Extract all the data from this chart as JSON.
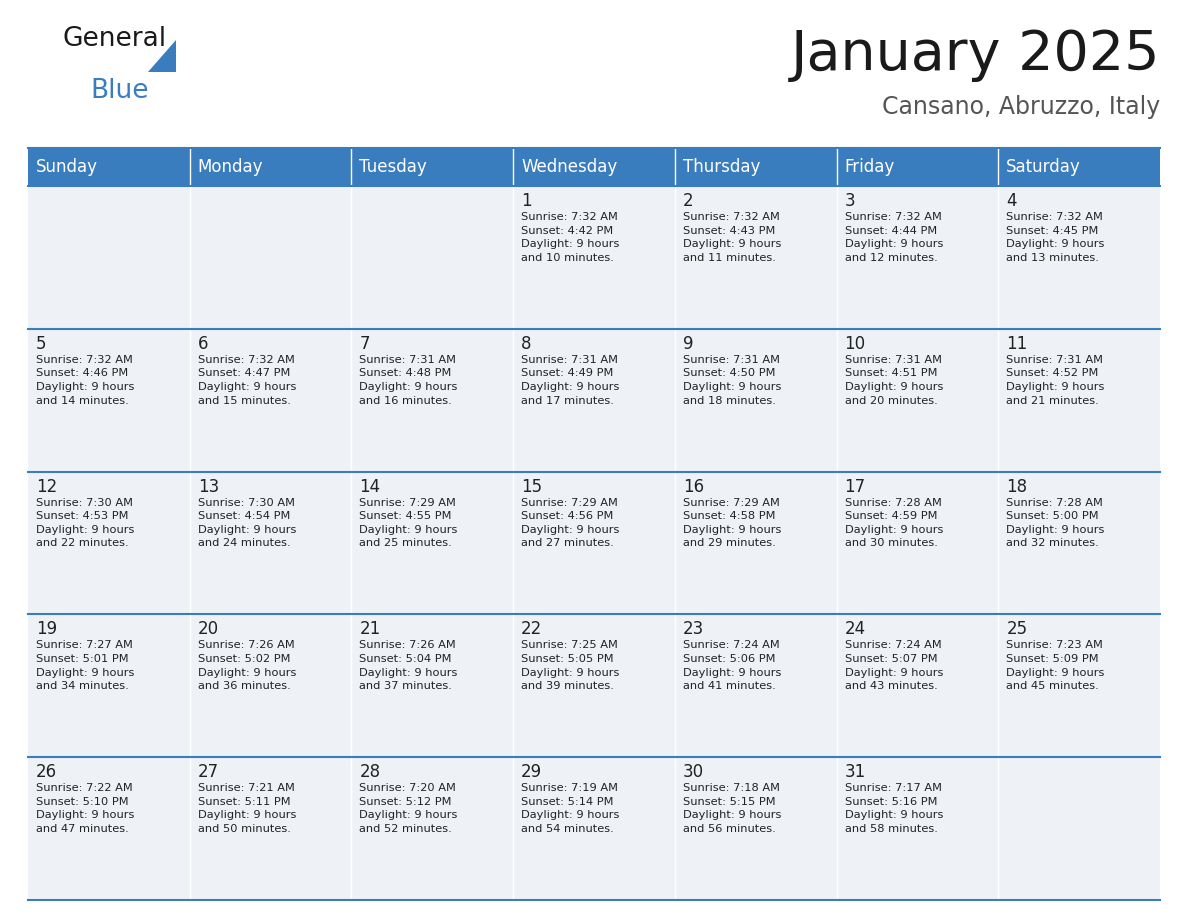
{
  "title": "January 2025",
  "subtitle": "Cansano, Abruzzo, Italy",
  "header_bg": "#3a7dbf",
  "header_text_color": "#ffffff",
  "cell_bg_odd": "#eef2f7",
  "cell_bg_even": "#eef2f7",
  "text_color": "#222222",
  "line_color": "#3a7dbf",
  "days_of_week": [
    "Sunday",
    "Monday",
    "Tuesday",
    "Wednesday",
    "Thursday",
    "Friday",
    "Saturday"
  ],
  "calendar": [
    [
      {
        "day": null,
        "info": null
      },
      {
        "day": null,
        "info": null
      },
      {
        "day": null,
        "info": null
      },
      {
        "day": 1,
        "info": "Sunrise: 7:32 AM\nSunset: 4:42 PM\nDaylight: 9 hours\nand 10 minutes."
      },
      {
        "day": 2,
        "info": "Sunrise: 7:32 AM\nSunset: 4:43 PM\nDaylight: 9 hours\nand 11 minutes."
      },
      {
        "day": 3,
        "info": "Sunrise: 7:32 AM\nSunset: 4:44 PM\nDaylight: 9 hours\nand 12 minutes."
      },
      {
        "day": 4,
        "info": "Sunrise: 7:32 AM\nSunset: 4:45 PM\nDaylight: 9 hours\nand 13 minutes."
      }
    ],
    [
      {
        "day": 5,
        "info": "Sunrise: 7:32 AM\nSunset: 4:46 PM\nDaylight: 9 hours\nand 14 minutes."
      },
      {
        "day": 6,
        "info": "Sunrise: 7:32 AM\nSunset: 4:47 PM\nDaylight: 9 hours\nand 15 minutes."
      },
      {
        "day": 7,
        "info": "Sunrise: 7:31 AM\nSunset: 4:48 PM\nDaylight: 9 hours\nand 16 minutes."
      },
      {
        "day": 8,
        "info": "Sunrise: 7:31 AM\nSunset: 4:49 PM\nDaylight: 9 hours\nand 17 minutes."
      },
      {
        "day": 9,
        "info": "Sunrise: 7:31 AM\nSunset: 4:50 PM\nDaylight: 9 hours\nand 18 minutes."
      },
      {
        "day": 10,
        "info": "Sunrise: 7:31 AM\nSunset: 4:51 PM\nDaylight: 9 hours\nand 20 minutes."
      },
      {
        "day": 11,
        "info": "Sunrise: 7:31 AM\nSunset: 4:52 PM\nDaylight: 9 hours\nand 21 minutes."
      }
    ],
    [
      {
        "day": 12,
        "info": "Sunrise: 7:30 AM\nSunset: 4:53 PM\nDaylight: 9 hours\nand 22 minutes."
      },
      {
        "day": 13,
        "info": "Sunrise: 7:30 AM\nSunset: 4:54 PM\nDaylight: 9 hours\nand 24 minutes."
      },
      {
        "day": 14,
        "info": "Sunrise: 7:29 AM\nSunset: 4:55 PM\nDaylight: 9 hours\nand 25 minutes."
      },
      {
        "day": 15,
        "info": "Sunrise: 7:29 AM\nSunset: 4:56 PM\nDaylight: 9 hours\nand 27 minutes."
      },
      {
        "day": 16,
        "info": "Sunrise: 7:29 AM\nSunset: 4:58 PM\nDaylight: 9 hours\nand 29 minutes."
      },
      {
        "day": 17,
        "info": "Sunrise: 7:28 AM\nSunset: 4:59 PM\nDaylight: 9 hours\nand 30 minutes."
      },
      {
        "day": 18,
        "info": "Sunrise: 7:28 AM\nSunset: 5:00 PM\nDaylight: 9 hours\nand 32 minutes."
      }
    ],
    [
      {
        "day": 19,
        "info": "Sunrise: 7:27 AM\nSunset: 5:01 PM\nDaylight: 9 hours\nand 34 minutes."
      },
      {
        "day": 20,
        "info": "Sunrise: 7:26 AM\nSunset: 5:02 PM\nDaylight: 9 hours\nand 36 minutes."
      },
      {
        "day": 21,
        "info": "Sunrise: 7:26 AM\nSunset: 5:04 PM\nDaylight: 9 hours\nand 37 minutes."
      },
      {
        "day": 22,
        "info": "Sunrise: 7:25 AM\nSunset: 5:05 PM\nDaylight: 9 hours\nand 39 minutes."
      },
      {
        "day": 23,
        "info": "Sunrise: 7:24 AM\nSunset: 5:06 PM\nDaylight: 9 hours\nand 41 minutes."
      },
      {
        "day": 24,
        "info": "Sunrise: 7:24 AM\nSunset: 5:07 PM\nDaylight: 9 hours\nand 43 minutes."
      },
      {
        "day": 25,
        "info": "Sunrise: 7:23 AM\nSunset: 5:09 PM\nDaylight: 9 hours\nand 45 minutes."
      }
    ],
    [
      {
        "day": 26,
        "info": "Sunrise: 7:22 AM\nSunset: 5:10 PM\nDaylight: 9 hours\nand 47 minutes."
      },
      {
        "day": 27,
        "info": "Sunrise: 7:21 AM\nSunset: 5:11 PM\nDaylight: 9 hours\nand 50 minutes."
      },
      {
        "day": 28,
        "info": "Sunrise: 7:20 AM\nSunset: 5:12 PM\nDaylight: 9 hours\nand 52 minutes."
      },
      {
        "day": 29,
        "info": "Sunrise: 7:19 AM\nSunset: 5:14 PM\nDaylight: 9 hours\nand 54 minutes."
      },
      {
        "day": 30,
        "info": "Sunrise: 7:18 AM\nSunset: 5:15 PM\nDaylight: 9 hours\nand 56 minutes."
      },
      {
        "day": 31,
        "info": "Sunrise: 7:17 AM\nSunset: 5:16 PM\nDaylight: 9 hours\nand 58 minutes."
      },
      {
        "day": null,
        "info": null
      }
    ]
  ],
  "logo_text_general": "General",
  "logo_text_blue": "Blue",
  "fig_width": 11.88,
  "fig_height": 9.18,
  "dpi": 100
}
